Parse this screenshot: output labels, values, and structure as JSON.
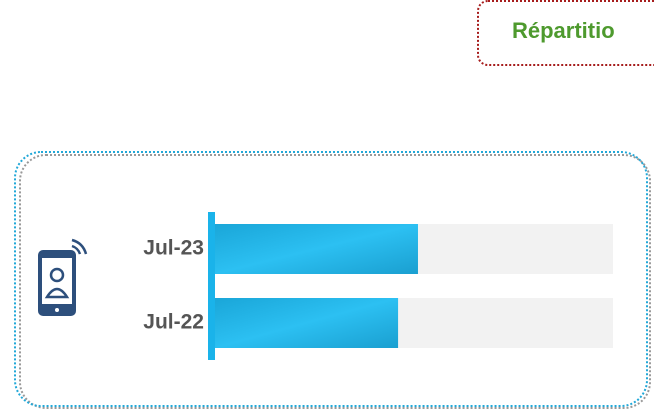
{
  "chart_data": {
    "type": "bar",
    "title": "Répartitio",
    "categories": [
      "Jul-23",
      "Jul-22"
    ],
    "values": [
      51,
      46
    ],
    "color": "#1ab3ea",
    "xlim": [
      0,
      100
    ]
  }
}
